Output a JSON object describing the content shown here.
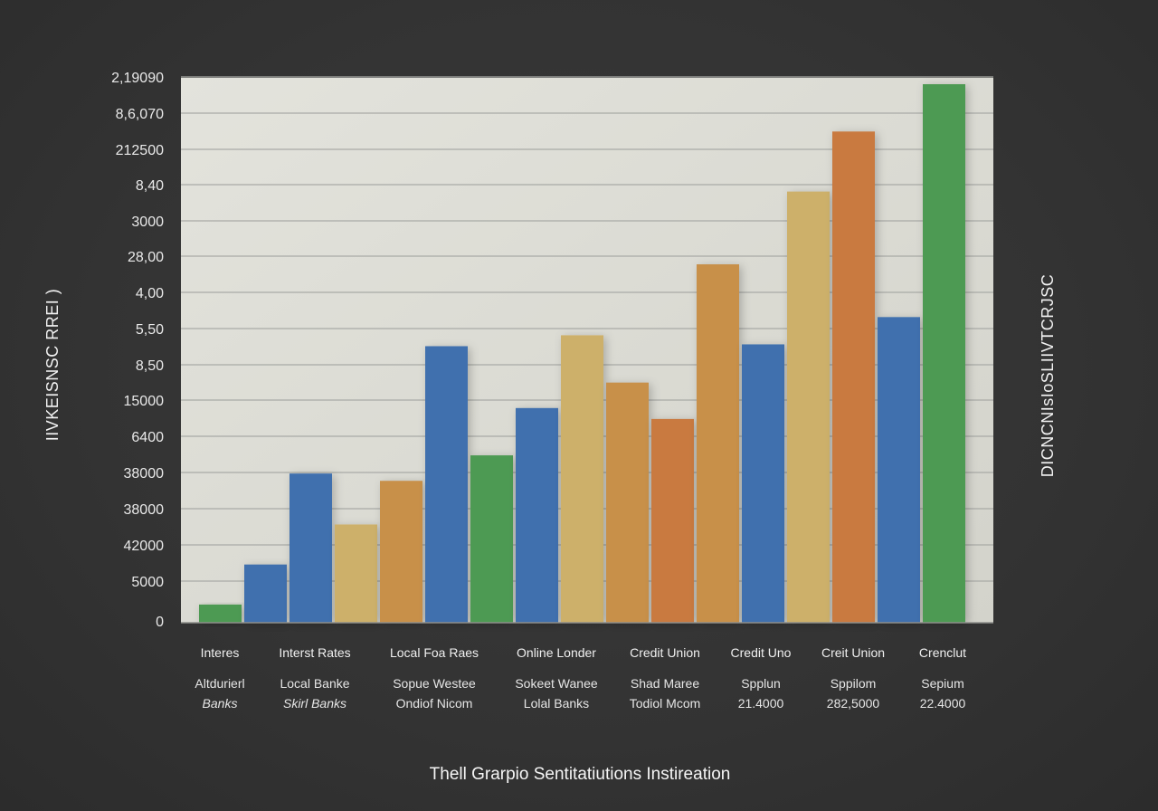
{
  "chart_data": {
    "type": "bar",
    "title": "Thell Grarpio Sentitatiutions Instireation",
    "ylabel": "IIVKEISNSC RREI )",
    "y2label": "DICNCNIsIoSLIIVTCRJSC",
    "y_tick_labels": [
      "0",
      "5000",
      "42000",
      "38000",
      "38000",
      "6400",
      "15000",
      "8,50",
      "5,50",
      "4,00",
      "28,00",
      "3000",
      "8,40",
      "212500",
      "8,6,070",
      "2,19090"
    ],
    "ylim": [
      0,
      15
    ],
    "groups": [
      {
        "line1": "Interes",
        "line2": "Altdurierl",
        "line3": "Banks"
      },
      {
        "line1": "Interst Rates",
        "line2": "Local Banke",
        "line3": "Skirl Banks"
      },
      {
        "line1": "Local Foa Raes",
        "line2": "Sopue Westee",
        "line3": "Ondiof Nicom"
      },
      {
        "line1": "Online Londer",
        "line2": "Sokeet Wanee",
        "line3": "Lolal Banks"
      },
      {
        "line1": "Credit Union",
        "line2": "Shad Maree",
        "line3": "Todiol Mcom"
      },
      {
        "line1": "Credit Uno",
        "line2": "Spplun",
        "line3": "21.4000"
      },
      {
        "line1": "Creit Union",
        "line2": "Sppilom",
        "line3": "282,5000"
      },
      {
        "line1": "Crenclut",
        "line2": "Sepium",
        "line3": "22.4000"
      }
    ],
    "bars": [
      {
        "color": "green",
        "value": 0.5
      },
      {
        "color": "blue",
        "value": 1.6
      },
      {
        "color": "blue",
        "value": 4.1
      },
      {
        "color": "tan",
        "value": 2.7
      },
      {
        "color": "orange",
        "value": 3.9
      },
      {
        "color": "blue",
        "value": 7.6
      },
      {
        "color": "green",
        "value": 4.6
      },
      {
        "color": "blue",
        "value": 5.9
      },
      {
        "color": "tan",
        "value": 7.9
      },
      {
        "color": "orange",
        "value": 6.6
      },
      {
        "color": "rust",
        "value": 5.6
      },
      {
        "color": "orange",
        "value": 9.85
      },
      {
        "color": "blue",
        "value": 7.65
      },
      {
        "color": "tan",
        "value": 11.85
      },
      {
        "color": "rust",
        "value": 13.5
      },
      {
        "color": "blue",
        "value": 8.4
      },
      {
        "color": "green",
        "value": 14.8
      }
    ],
    "palette": {
      "green": "#4e9a52",
      "blue": "#3f6fae",
      "tan": "#cdb06a",
      "orange": "#c8904a",
      "rust": "#c97a40"
    },
    "plot_background": "#dcdcd4",
    "grid": true,
    "gridline_color": "#a9aaa6"
  }
}
